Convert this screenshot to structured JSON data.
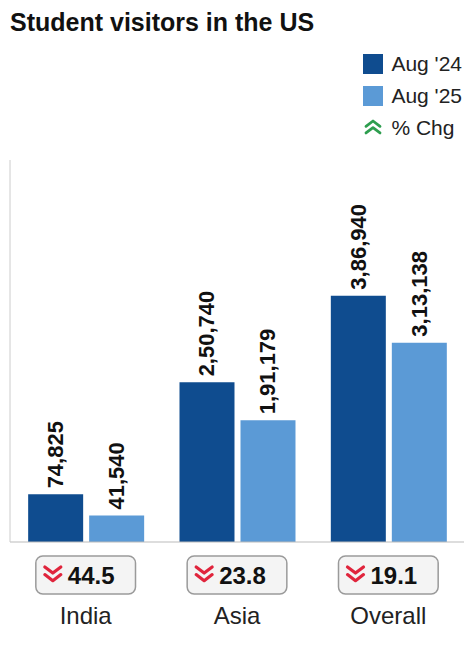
{
  "chart_data": {
    "type": "bar",
    "title": "Student visitors in the US",
    "categories": [
      "India",
      "Asia",
      "Overall"
    ],
    "series": [
      {
        "name": "Aug '24",
        "color": "#0f4c8f",
        "values": [
          74825,
          250740,
          386940
        ],
        "value_labels": [
          "74,825",
          "2,50,740",
          "3,86,940"
        ]
      },
      {
        "name": "Aug '25",
        "color": "#5b9ad6",
        "values": [
          41540,
          191179,
          313138
        ],
        "value_labels": [
          "41,540",
          "1,91,179",
          "3,13,138"
        ]
      }
    ],
    "change": {
      "name": "% Chg",
      "values": [
        -44.5,
        -23.8,
        -19.1
      ],
      "value_labels": [
        "44.5",
        "23.8",
        "19.1"
      ]
    },
    "ylim": [
      0,
      600000
    ],
    "data_labels": true,
    "tick_labels": "x",
    "legend": "top right"
  }
}
